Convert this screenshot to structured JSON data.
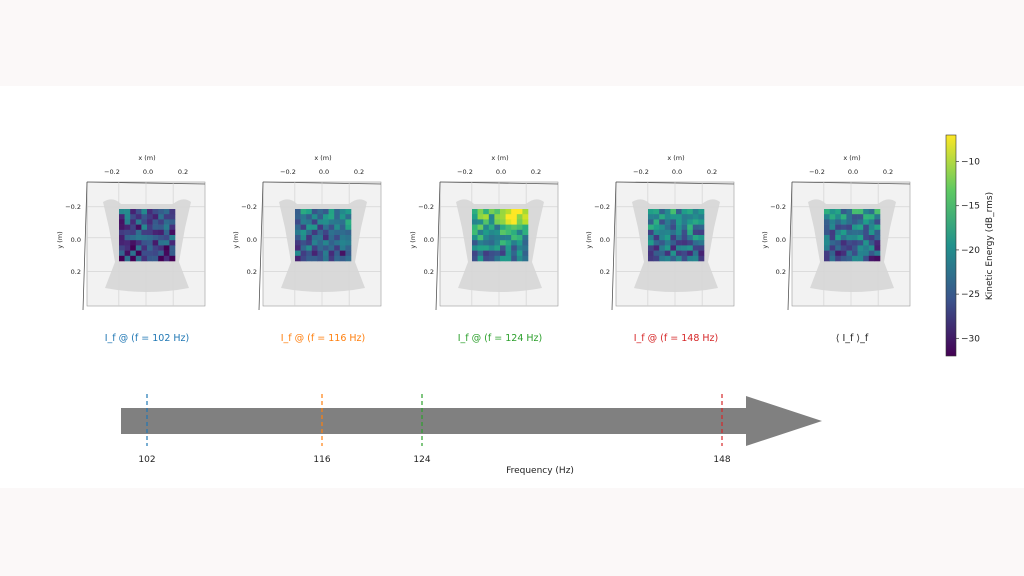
{
  "chart_data": {
    "type": "heatmap",
    "panels": [
      {
        "caption": "I_f @ (f = 102 Hz)",
        "caption_color": "#1f77b4",
        "frequency_hz": 102,
        "x_axis_label": "x (m)",
        "y_axis_label": "y (m)",
        "x_ticks": [
          "−0.2",
          "0.0",
          "0.2"
        ],
        "y_ticks": [
          "−0.2",
          "0.0",
          "0.2"
        ],
        "intensity": 0.25
      },
      {
        "caption": "I_f @ (f = 116 Hz)",
        "caption_color": "#ff7f0e",
        "frequency_hz": 116,
        "x_axis_label": "x (m)",
        "y_axis_label": "y (m)",
        "x_ticks": [
          "−0.2",
          "0.0",
          "0.2"
        ],
        "y_ticks": [
          "−0.2",
          "0.0",
          "0.2"
        ],
        "intensity": 0.4
      },
      {
        "caption": "I_f @ (f = 124 Hz)",
        "caption_color": "#2ca02c",
        "frequency_hz": 124,
        "x_axis_label": "x (m)",
        "y_axis_label": "y (m)",
        "x_ticks": [
          "−0.2",
          "0.0",
          "0.2"
        ],
        "y_ticks": [
          "−0.2",
          "0.0",
          "0.2"
        ],
        "intensity": 0.6
      },
      {
        "caption": "I_f @ (f = 148 Hz)",
        "caption_color": "#d62728",
        "frequency_hz": 148,
        "x_axis_label": "x (m)",
        "y_axis_label": "y (m)",
        "x_ticks": [
          "−0.2",
          "0.0",
          "0.2"
        ],
        "y_ticks": [
          "−0.2",
          "0.0",
          "0.2"
        ],
        "intensity": 0.45
      },
      {
        "caption": "⟨ I_f ⟩_f",
        "caption_color": "#222222",
        "frequency_hz": null,
        "x_axis_label": "x (m)",
        "y_axis_label": "y (m)",
        "x_ticks": [
          "−0.2",
          "0.0",
          "0.2"
        ],
        "y_ticks": [
          "−0.2",
          "0.0",
          "0.2"
        ],
        "intensity": 0.42
      }
    ],
    "colorbar": {
      "label": "Kinetic Energy (dB_rms)",
      "colormap": "viridis",
      "range": [
        -32,
        -7
      ],
      "ticks": [
        "−10",
        "−15",
        "−20",
        "−25",
        "−30"
      ],
      "tick_values": [
        -10,
        -15,
        -20,
        -25,
        -30
      ]
    },
    "frequency_axis": {
      "label": "Frequency (Hz)",
      "range": [
        102,
        158
      ],
      "markers": [
        {
          "value": 102,
          "label": "102",
          "color": "#1f77b4"
        },
        {
          "value": 116,
          "label": "116",
          "color": "#ff7f0e"
        },
        {
          "value": 124,
          "label": "124",
          "color": "#2ca02c"
        },
        {
          "value": 148,
          "label": "148",
          "color": "#d62728"
        }
      ]
    }
  }
}
